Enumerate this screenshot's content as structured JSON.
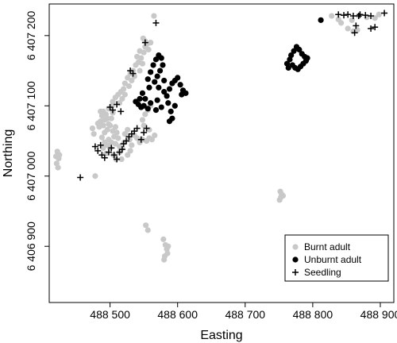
{
  "chart_data": {
    "type": "scatter",
    "xlabel": "Easting",
    "ylabel": "Northing",
    "xlim": [
      488410,
      488920
    ],
    "ylim": [
      6406820,
      6407245
    ],
    "x_ticks": [
      {
        "value": 488500,
        "label": "488 500"
      },
      {
        "value": 488600,
        "label": "488 600"
      },
      {
        "value": 488700,
        "label": "488 700"
      },
      {
        "value": 488800,
        "label": "488 800"
      },
      {
        "value": 488900,
        "label": "488 900"
      }
    ],
    "y_ticks": [
      {
        "value": 6406900,
        "label": "6 406 900"
      },
      {
        "value": 6407000,
        "label": "6 407 000"
      },
      {
        "value": 6407100,
        "label": "6 407 100"
      },
      {
        "value": 6407200,
        "label": "6 407 200"
      }
    ],
    "legend_position": "bottom-right",
    "series": [
      {
        "name": "Burnt adult",
        "marker": "circle",
        "color": "#c8c8c8",
        "points": [
          [
            488422,
            6407035
          ],
          [
            488424,
            6407025
          ],
          [
            488421,
            6407018
          ],
          [
            488423,
            6407012
          ],
          [
            488425,
            6407030
          ],
          [
            488420,
            6407028
          ],
          [
            488478,
            6407000
          ],
          [
            488474,
            6407068
          ],
          [
            488476,
            6407060
          ],
          [
            488482,
            6407075
          ],
          [
            488486,
            6407078
          ],
          [
            488484,
            6407070
          ],
          [
            488490,
            6407092
          ],
          [
            488488,
            6407086
          ],
          [
            488492,
            6407080
          ],
          [
            488494,
            6407088
          ],
          [
            488496,
            6407082
          ],
          [
            488486,
            6407092
          ],
          [
            488490,
            6407072
          ],
          [
            488498,
            6407074
          ],
          [
            488496,
            6407066
          ],
          [
            488492,
            6407062
          ],
          [
            488500,
            6407072
          ],
          [
            488502,
            6407082
          ],
          [
            488504,
            6407090
          ],
          [
            488498,
            6407096
          ],
          [
            488503,
            6407100
          ],
          [
            488488,
            6407055
          ],
          [
            488492,
            6407048
          ],
          [
            488496,
            6407044
          ],
          [
            488500,
            6407040
          ],
          [
            488490,
            6407040
          ],
          [
            488494,
            6407032
          ],
          [
            488498,
            6407052
          ],
          [
            488502,
            6407048
          ],
          [
            488506,
            6407056
          ],
          [
            488504,
            6407064
          ],
          [
            488508,
            6407070
          ],
          [
            488510,
            6407062
          ],
          [
            488512,
            6407054
          ],
          [
            488508,
            6407046
          ],
          [
            488514,
            6407042
          ],
          [
            488504,
            6407106
          ],
          [
            488508,
            6407112
          ],
          [
            488512,
            6407116
          ],
          [
            488516,
            6407120
          ],
          [
            488520,
            6407124
          ],
          [
            488518,
            6407110
          ],
          [
            488514,
            6407104
          ],
          [
            488522,
            6407132
          ],
          [
            488526,
            6407140
          ],
          [
            488530,
            6407146
          ],
          [
            488522,
            6407116
          ],
          [
            488528,
            6407128
          ],
          [
            488532,
            6407136
          ],
          [
            488534,
            6407150
          ],
          [
            488538,
            6407158
          ],
          [
            488542,
            6407162
          ],
          [
            488540,
            6407170
          ],
          [
            488544,
            6407178
          ],
          [
            488546,
            6407168
          ],
          [
            488548,
            6407160
          ],
          [
            488536,
            6407142
          ],
          [
            488544,
            6407150
          ],
          [
            488550,
            6407176
          ],
          [
            488552,
            6407184
          ],
          [
            488549,
            6407196
          ],
          [
            488552,
            6407192
          ],
          [
            488555,
            6407188
          ],
          [
            488560,
            6407190
          ],
          [
            488557,
            6407180
          ],
          [
            488505,
            6407030
          ],
          [
            488509,
            6407024
          ],
          [
            488514,
            6407034
          ],
          [
            488518,
            6407040
          ],
          [
            488521,
            6407048
          ],
          [
            488517,
            6407024
          ],
          [
            488526,
            6407030
          ],
          [
            488530,
            6407036
          ],
          [
            488532,
            6407044
          ],
          [
            488529,
            6407052
          ],
          [
            488522,
            6407060
          ],
          [
            488526,
            6407066
          ],
          [
            488536,
            6407058
          ],
          [
            488540,
            6407054
          ],
          [
            488544,
            6407048
          ],
          [
            488548,
            6407052
          ],
          [
            488554,
            6407050
          ],
          [
            488558,
            6407054
          ],
          [
            488562,
            6407052
          ],
          [
            488566,
            6407058
          ],
          [
            488550,
            6407072
          ],
          [
            488548,
            6407080
          ],
          [
            488552,
            6407088
          ],
          [
            488556,
            6407094
          ],
          [
            488560,
            6407100
          ],
          [
            488565,
            6407228
          ],
          [
            488558,
            6407066
          ],
          [
            488553,
            6406930
          ],
          [
            488556,
            6406923
          ],
          [
            488579,
            6406910
          ],
          [
            488582,
            6406902
          ],
          [
            488584,
            6406896
          ],
          [
            488585,
            6406890
          ],
          [
            488581,
            6406886
          ],
          [
            488580,
            6406881
          ],
          [
            488586,
            6406900
          ],
          [
            488752,
            6406978
          ],
          [
            488754,
            6406974
          ],
          [
            488753,
            6406970
          ],
          [
            488751,
            6406966
          ],
          [
            488756,
            6406972
          ],
          [
            488828,
            6407228
          ],
          [
            488838,
            6407223
          ],
          [
            488842,
            6407218
          ],
          [
            488858,
            6407222
          ],
          [
            488868,
            6407228
          ],
          [
            488880,
            6407226
          ],
          [
            488892,
            6407225
          ],
          [
            488852,
            6407210
          ],
          [
            488860,
            6407206
          ],
          [
            488866,
            6407208
          ],
          [
            488898,
            6407230
          ]
        ]
      },
      {
        "name": "Unburnt adult",
        "marker": "disc",
        "color": "#000000",
        "points": [
          [
            488538,
            6407106
          ],
          [
            488542,
            6407102
          ],
          [
            488546,
            6407098
          ],
          [
            488550,
            6407100
          ],
          [
            488556,
            6407096
          ],
          [
            488560,
            6407104
          ],
          [
            488552,
            6407110
          ],
          [
            488548,
            6407118
          ],
          [
            488558,
            6407126
          ],
          [
            488556,
            6407138
          ],
          [
            488560,
            6407148
          ],
          [
            488564,
            6407158
          ],
          [
            488568,
            6407166
          ],
          [
            488572,
            6407172
          ],
          [
            488576,
            6407168
          ],
          [
            488578,
            6407158
          ],
          [
            488574,
            6407150
          ],
          [
            488570,
            6407142
          ],
          [
            488566,
            6407134
          ],
          [
            488572,
            6407126
          ],
          [
            488580,
            6407120
          ],
          [
            488584,
            6407114
          ],
          [
            488588,
            6407124
          ],
          [
            488592,
            6407132
          ],
          [
            488596,
            6407136
          ],
          [
            488600,
            6407140
          ],
          [
            488604,
            6407130
          ],
          [
            488608,
            6407122
          ],
          [
            488612,
            6407118
          ],
          [
            488606,
            6407116
          ],
          [
            488576,
            6407098
          ],
          [
            488570,
            6407108
          ],
          [
            488586,
            6407104
          ],
          [
            488590,
            6407092
          ],
          [
            488592,
            6407082
          ],
          [
            488596,
            6407100
          ],
          [
            488588,
            6407078
          ],
          [
            488568,
            6407094
          ],
          [
            488544,
            6407110
          ],
          [
            488580,
            6407136
          ],
          [
            488762,
            6407160
          ],
          [
            488766,
            6407166
          ],
          [
            488768,
            6407172
          ],
          [
            488772,
            6407178
          ],
          [
            488776,
            6407184
          ],
          [
            488780,
            6407180
          ],
          [
            488784,
            6407174
          ],
          [
            488788,
            6407170
          ],
          [
            488792,
            6407168
          ],
          [
            488790,
            6407164
          ],
          [
            488786,
            6407160
          ],
          [
            488782,
            6407156
          ],
          [
            488778,
            6407152
          ],
          [
            488774,
            6407154
          ],
          [
            488770,
            6407158
          ],
          [
            488764,
            6407154
          ],
          [
            488812,
            6407222
          ]
        ]
      },
      {
        "name": "Seedling",
        "marker": "plus",
        "color": "#000000",
        "points": [
          [
            488456,
            6406998
          ],
          [
            488478,
            6407042
          ],
          [
            488482,
            6407036
          ],
          [
            488486,
            6407044
          ],
          [
            488488,
            6407030
          ],
          [
            488492,
            6407026
          ],
          [
            488498,
            6407034
          ],
          [
            488502,
            6407040
          ],
          [
            488506,
            6407030
          ],
          [
            488510,
            6407024
          ],
          [
            488514,
            6407034
          ],
          [
            488518,
            6407038
          ],
          [
            488520,
            6407046
          ],
          [
            488524,
            6407050
          ],
          [
            488528,
            6407056
          ],
          [
            488532,
            6407060
          ],
          [
            488536,
            6407064
          ],
          [
            488540,
            6407068
          ],
          [
            488546,
            6407052
          ],
          [
            488550,
            6407062
          ],
          [
            488554,
            6407068
          ],
          [
            488500,
            6407098
          ],
          [
            488504,
            6407094
          ],
          [
            488510,
            6407102
          ],
          [
            488516,
            6407092
          ],
          [
            488530,
            6407150
          ],
          [
            488534,
            6407146
          ],
          [
            488552,
            6407190
          ],
          [
            488568,
            6407218
          ],
          [
            488838,
            6407230
          ],
          [
            488846,
            6407229
          ],
          [
            488852,
            6407230
          ],
          [
            488860,
            6407228
          ],
          [
            488870,
            6407230
          ],
          [
            488878,
            6407229
          ],
          [
            488886,
            6407228
          ],
          [
            488906,
            6407232
          ],
          [
            488864,
            6407214
          ],
          [
            488862,
            6407204
          ],
          [
            488886,
            6407210
          ],
          [
            488892,
            6407212
          ],
          [
            488868,
            6407228
          ]
        ]
      }
    ]
  }
}
